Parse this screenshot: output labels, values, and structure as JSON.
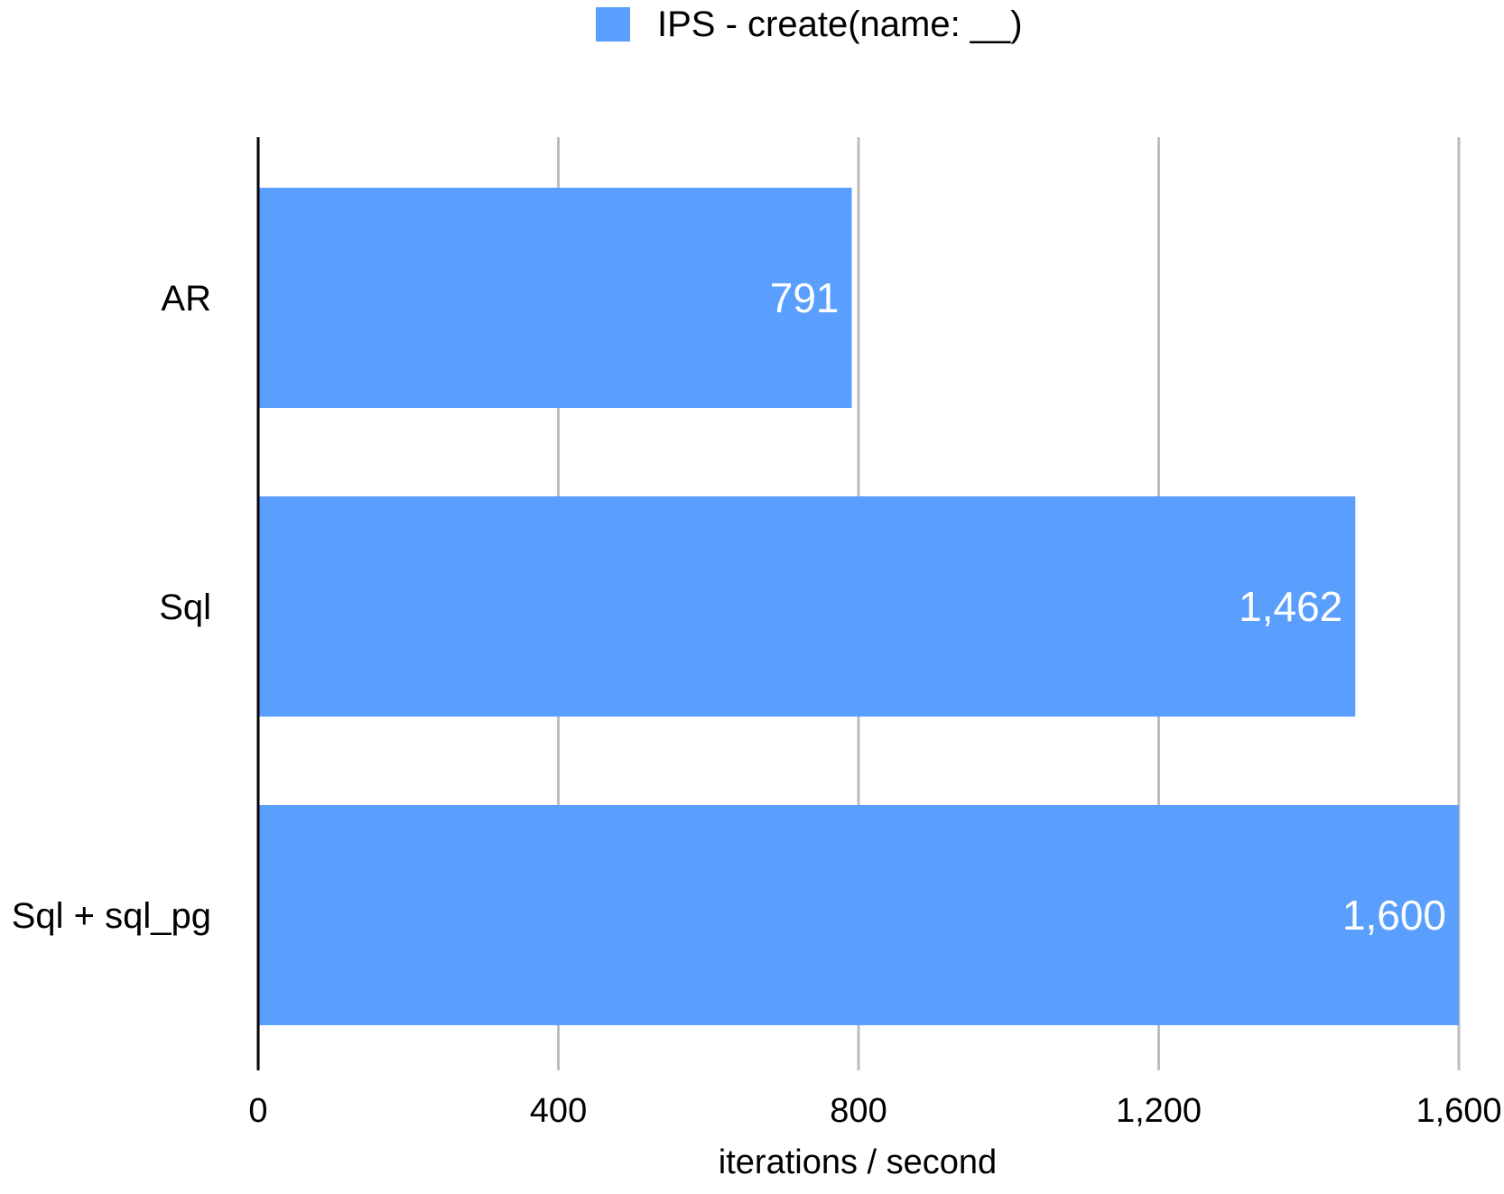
{
  "chart_data": {
    "type": "bar",
    "orientation": "horizontal",
    "categories": [
      "AR",
      "Sql",
      "Sql + sql_pg"
    ],
    "series": [
      {
        "name": "IPS - create(name: __)",
        "values": [
          791,
          1462,
          1600
        ],
        "data_labels": [
          "791",
          "1,462",
          "1,600"
        ]
      }
    ],
    "xlabel": "iterations / second",
    "ylabel": "",
    "xlim": [
      0,
      1600
    ],
    "x_ticks": [
      0,
      400,
      800,
      1200,
      1600
    ],
    "x_tick_labels": [
      "0",
      "400",
      "800",
      "1,200",
      "1,600"
    ],
    "grid": true,
    "legend_position": "top-center",
    "colors": {
      "bar": "#5b9ffe",
      "grid": "#bdbdbd",
      "axis": "#000000",
      "data_label": "#ffffff"
    }
  }
}
